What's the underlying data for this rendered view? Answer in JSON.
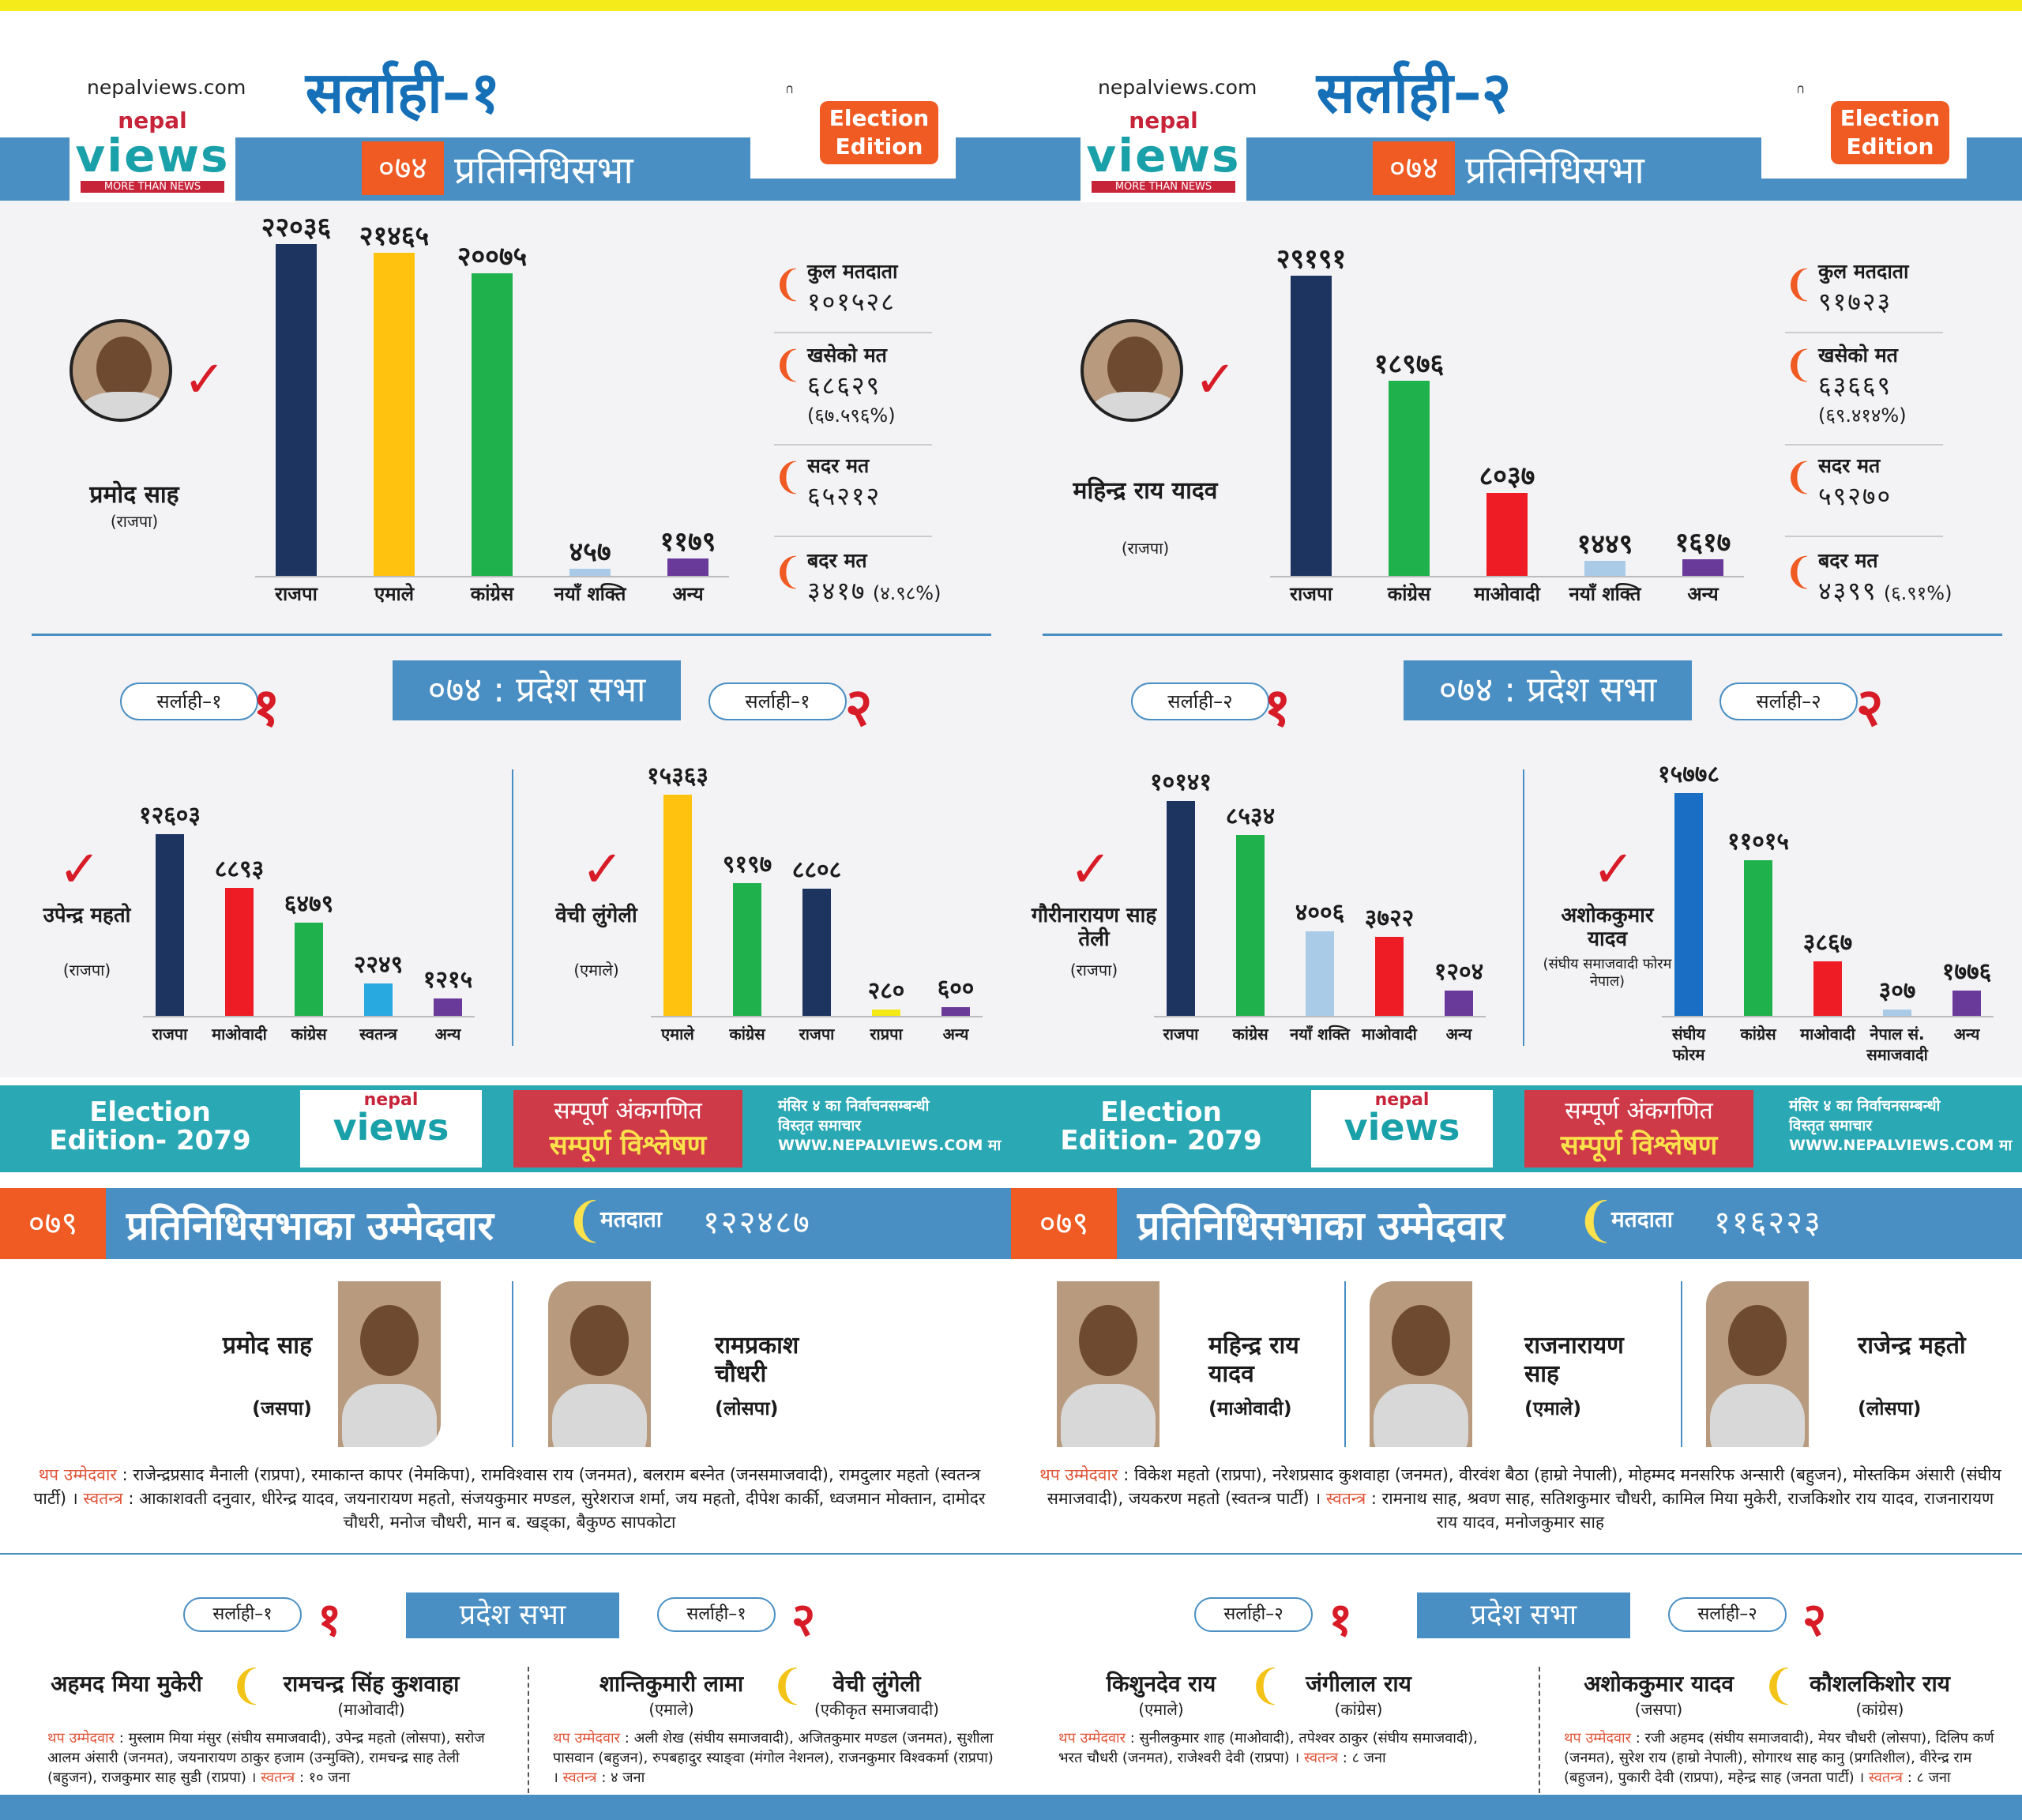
{
  "header": {
    "site": "nepalviews.com",
    "logo_top": "nepal",
    "logo_main": "views",
    "logo_tag": "MORE THAN NEWS",
    "badge": "Election Edition"
  },
  "colors": {
    "blue": "#4a8fc3",
    "orange": "#f05a23",
    "red": "#d71c27",
    "navy": "#1d3461",
    "yellow": "#ffc20e",
    "green": "#1fb14b",
    "lightblue": "#a9cbe8",
    "purple": "#6a3a9a",
    "cyan": "#28a9e0",
    "teal": "#2aa8b4"
  },
  "halves": [
    {
      "title": "सर्लाही–१",
      "year": "०७४",
      "house": "प्रतिनिधिसभा",
      "winner": {
        "name": "प्रमोद साह",
        "party": "(राजपा)"
      },
      "stats": [
        {
          "label": "कुल मतदाता",
          "value": "१०१५२८",
          "pct": ""
        },
        {
          "label": "खसेको मत",
          "value": "६८६२९",
          "pct": "(६७.५९६%)"
        },
        {
          "label": "सदर मत",
          "value": "६५२१२",
          "pct": ""
        },
        {
          "label": "बदर मत",
          "value": "३४१७",
          "pct": "(४.९८%)"
        }
      ],
      "province_title": "०७४ : प्रदेश सभा",
      "p1": {
        "pill": "सर्लाही–१",
        "num": "१",
        "winner": "उपेन्द्र महतो",
        "party": "(राजपा)"
      },
      "p2": {
        "pill": "सर्लाही–१",
        "num": "२",
        "winner": "वेची लुंगेली",
        "party": "(एमाले)"
      },
      "banner": {
        "edition": "Election Edition- 2079",
        "red1": "सम्पूर्ण अंकगणित",
        "red2": "सम्पूर्ण विश्लेषण",
        "r1": "मंसिर ४ का निर्वाचनसम्बन्धी",
        "r2": "विस्तृत समाचार",
        "r3": "WWW.NEPALVIEWS.COM मा"
      },
      "cand_bar": {
        "year": "०७९",
        "title": "प्रतिनिधिसभाका उम्मेदवार",
        "voters_label": "मतदाता",
        "voters": "१२२४८७"
      },
      "candidates": [
        {
          "name": "प्रमोद साह",
          "party": "(जसपा)"
        },
        {
          "name": "रामप्रकाश चौधरी",
          "party": "(लोसपा)"
        }
      ],
      "extra_key": "थप उम्मेदवार",
      "extra_text": "राजेन्द्रप्रसाद मैनाली (राप्रपा), रमाकान्त कापर (नेमकिपा), रामविश्वास राय (जनमत), बलराम बस्नेत (जनसमाजवादी), रामदुलार महतो (स्वतन्त्र पार्टी) ।",
      "indep_key": "स्वतन्त्र",
      "indep_text": "आकाशवती दनुवार, धीरेन्द्र यादव, जयनारायण महतो, संजयकुमार मण्डल, सुरेशराज शर्मा, जय महतो, दीपेश कार्की, ध्वजमान मोक्तान, दामोदर चौधरी, मनोज चौधरी, मान ब. खड्का, बैकुण्ठ सापकोटा",
      "ps": {
        "title": "प्रदेश सभा",
        "pill1": "सर्लाही–१",
        "num1": "१",
        "pill2": "सर्लाही–१",
        "num2": "२",
        "c1a": {
          "name": "अहमद मिया मुकेरी",
          "party": ""
        },
        "c1b": {
          "name": "रामचन्द्र सिंह कुशवाहा",
          "party": "(माओवादी)"
        },
        "c2a": {
          "name": "शान्तिकुमारी लामा",
          "party": "(एमाले)"
        },
        "c2b": {
          "name": "वेची लुंगेली",
          "party": "(एकीकृत समाजवादी)"
        },
        "x1": "मुस्लाम मिया मंसुर (संघीय समाजवादी), उपेन्द्र महतो (लोसपा), सरोज आलम अंसारी (जनमत), जयनारायण ठाकुर हजाम (उन्मुक्ति), रामचन्द्र साह तेली (बहुजन), राजकुमार साह सुडी (राप्रपा) ।",
        "x1i": "१० जना",
        "x2": "अली शेख (संघीय समाजवादी), अजितकुमार मण्डल (जनमत), सुशीला पासवान (बहुजन), रुपबहादुर स्याङ्वा (मंगोल नेशनल), राजनकुमार विश्वकर्मा (राप्रपा) ।",
        "x2i": "४ जना"
      }
    },
    {
      "title": "सर्लाही–२",
      "year": "०७४",
      "house": "प्रतिनिधिसभा",
      "winner": {
        "name": "महिन्द्र राय यादव",
        "party": "(राजपा)"
      },
      "stats": [
        {
          "label": "कुल मतदाता",
          "value": "९१७२३",
          "pct": ""
        },
        {
          "label": "खसेको मत",
          "value": "६३६६९",
          "pct": "(६९.४१४%)"
        },
        {
          "label": "सदर मत",
          "value": "५९२७०",
          "pct": ""
        },
        {
          "label": "बदर मत",
          "value": "४३९९",
          "pct": "(६.९१%)"
        }
      ],
      "province_title": "०७४ : प्रदेश सभा",
      "p1": {
        "pill": "सर्लाही–२",
        "num": "१",
        "winner": "गौरीनारायण साह तेली",
        "party": "(राजपा)"
      },
      "p2": {
        "pill": "सर्लाही–२",
        "num": "२",
        "winner": "अशोककुमार यादव",
        "party": "(संघीय समाजवादी फोरम नेपाल)"
      },
      "banner": {
        "edition": "Election Edition- 2079",
        "red1": "सम्पूर्ण अंकगणित",
        "red2": "सम्पूर्ण विश्लेषण",
        "r1": "मंसिर ४ का निर्वाचनसम्बन्धी",
        "r2": "विस्तृत समाचार",
        "r3": "WWW.NEPALVIEWS.COM मा"
      },
      "cand_bar": {
        "year": "०७९",
        "title": "प्रतिनिधिसभाका उम्मेदवार",
        "voters_label": "मतदाता",
        "voters": "११६२२३"
      },
      "candidates": [
        {
          "name": "महिन्द्र राय यादव",
          "party": "(माओवादी)"
        },
        {
          "name": "राजनारायण साह",
          "party": "(एमाले)"
        },
        {
          "name": "राजेन्द्र महतो",
          "party": "(लोसपा)"
        }
      ],
      "extra_key": "थप उम्मेदवार",
      "extra_text": "विकेश महतो (राप्रपा), नरेशप्रसाद कुशवाहा (जनमत), वीरवंश बैठा (हाम्रो नेपाली), मोहम्मद मनसरिफ अन्सारी (बहुजन), मोस्तकिम अंसारी (संघीय समाजवादी), जयकरण महतो (स्वतन्त्र पार्टी) ।",
      "indep_key": "स्वतन्त्र",
      "indep_text": "रामनाथ साह, श्रवण साह, सतिशकुमार चौधरी, कामिल मिया मुकेरी, राजकिशोर राय यादव, राजनारायण राय यादव, मनोजकुमार साह",
      "ps": {
        "title": "प्रदेश सभा",
        "pill1": "सर्लाही–२",
        "num1": "१",
        "pill2": "सर्लाही–२",
        "num2": "२",
        "c1a": {
          "name": "किशुनदेव राय",
          "party": "(एमाले)"
        },
        "c1b": {
          "name": "जंगीलाल राय",
          "party": "(कांग्रेस)"
        },
        "c2a": {
          "name": "अशोककुमार यादव",
          "party": "(जसपा)"
        },
        "c2b": {
          "name": "कौशलकिशोर राय",
          "party": "(कांग्रेस)"
        },
        "x1": "सुनीलकुमार शाह (माओवादी), तपेश्वर ठाकुर (संघीय समाजवादी), भरत चौधरी (जनमत), राजेश्वरी देवी (राप्रपा) ।",
        "x1i": "८ जना",
        "x2": "रजी अहमद (संघीय समाजवादी), मेयर चौधरी (लोसपा), दिलिप कर्ण (जनमत), सुरेश राय (हाम्रो नेपाली), सोगारथ साह कानु (प्रगतिशील), वीरेन्द्र राम (बहुजन), पुकारी देवी (राप्रपा), महेन्द्र साह (जनता पार्टी) ।",
        "x2i": "८ जना"
      }
    }
  ],
  "chart_data": [
    {
      "type": "bar",
      "title": "सर्लाही–१ ०७४ प्रतिनिधिसभा",
      "categories": [
        "राजपा",
        "एमाले",
        "कांग्रेस",
        "नयाँ शक्ति",
        "अन्य"
      ],
      "values": [
        22036,
        21465,
        20075,
        457,
        1179
      ],
      "labels": [
        "२२०३६",
        "२१४६५",
        "२००७५",
        "४५७",
        "११७९"
      ],
      "colors": [
        "#1d3461",
        "#ffc20e",
        "#1fb14b",
        "#a9cbe8",
        "#6a3a9a"
      ],
      "ylim": [
        0,
        22036
      ]
    },
    {
      "type": "bar",
      "title": "सर्लाही–१ प्रदेश १",
      "categories": [
        "राजपा",
        "माओवादी",
        "कांग्रेस",
        "स्वतन्त्र",
        "अन्य"
      ],
      "values": [
        12603,
        8893,
        6479,
        2249,
        1215
      ],
      "labels": [
        "१२६०३",
        "८८९३",
        "६४७९",
        "२२४९",
        "१२१५"
      ],
      "colors": [
        "#1d3461",
        "#ee1c25",
        "#1fb14b",
        "#28a9e0",
        "#6a3a9a"
      ],
      "ylim": [
        0,
        15363
      ]
    },
    {
      "type": "bar",
      "title": "सर्लाही–१ प्रदेश २",
      "categories": [
        "एमाले",
        "कांग्रेस",
        "राजपा",
        "राप्रपा",
        "अन्य"
      ],
      "values": [
        15363,
        9197,
        8808,
        280,
        600
      ],
      "labels": [
        "१५३६३",
        "९१९७",
        "८८०८",
        "२८०",
        "६००"
      ],
      "colors": [
        "#ffc20e",
        "#1fb14b",
        "#1d3461",
        "#f3ea16",
        "#6a3a9a"
      ],
      "ylim": [
        0,
        15363
      ]
    },
    {
      "type": "bar",
      "title": "सर्लाही–२ ०७४ प्रतिनिधिसभा",
      "categories": [
        "राजपा",
        "कांग्रेस",
        "माओवादी",
        "नयाँ शक्ति",
        "अन्य"
      ],
      "values": [
        29191,
        18976,
        8037,
        1449,
        1617
      ],
      "labels": [
        "२९१९१",
        "१८९७६",
        "८०३७",
        "१४४९",
        "१६१७"
      ],
      "colors": [
        "#1d3461",
        "#1fb14b",
        "#ee1c25",
        "#a9cbe8",
        "#6a3a9a"
      ],
      "ylim": [
        0,
        29191
      ]
    },
    {
      "type": "bar",
      "title": "सर्लाही–२ प्रदेश १",
      "categories": [
        "राजपा",
        "कांग्रेस",
        "नयाँ शक्ति",
        "माओवादी",
        "अन्य"
      ],
      "values": [
        10141,
        8534,
        4006,
        3722,
        1204
      ],
      "labels": [
        "१०१४१",
        "८५३४",
        "४००६",
        "३७२२",
        "१२०४"
      ],
      "colors": [
        "#1d3461",
        "#1fb14b",
        "#a9cbe8",
        "#ee1c25",
        "#6a3a9a"
      ],
      "ylim": [
        0,
        10141
      ]
    },
    {
      "type": "bar",
      "title": "सर्लाही–२ प्रदेश २",
      "categories": [
        "संघीय फोरम",
        "कांग्रेस",
        "माओवादी",
        "नेपाल सं. समाजवादी",
        "अन्य"
      ],
      "values": [
        15778,
        11015,
        3867,
        307,
        1776
      ],
      "labels": [
        "१५७७८",
        "११०१५",
        "३८६७",
        "३०७",
        "१७७६"
      ],
      "colors": [
        "#1a6fc4",
        "#1fb14b",
        "#ee1c25",
        "#a9cbe8",
        "#6a3a9a"
      ],
      "ylim": [
        0,
        15778
      ]
    }
  ]
}
